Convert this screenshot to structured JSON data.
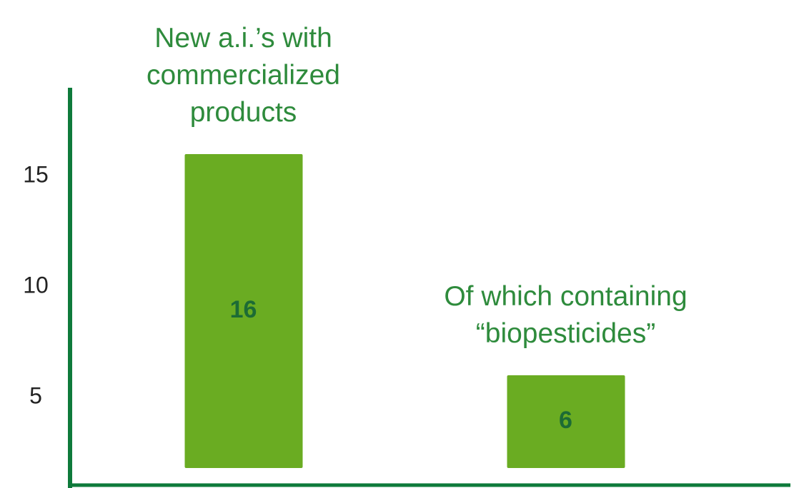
{
  "chart_data": {
    "type": "bar",
    "categories": [
      "New a.i.’s with commercialized products",
      "Of which containing “biopesticides”"
    ],
    "values": [
      16,
      6
    ],
    "color": "#6aac22",
    "ylim": [
      1,
      19
    ],
    "yticks": [
      5,
      10,
      15
    ],
    "grid": false
  }
}
